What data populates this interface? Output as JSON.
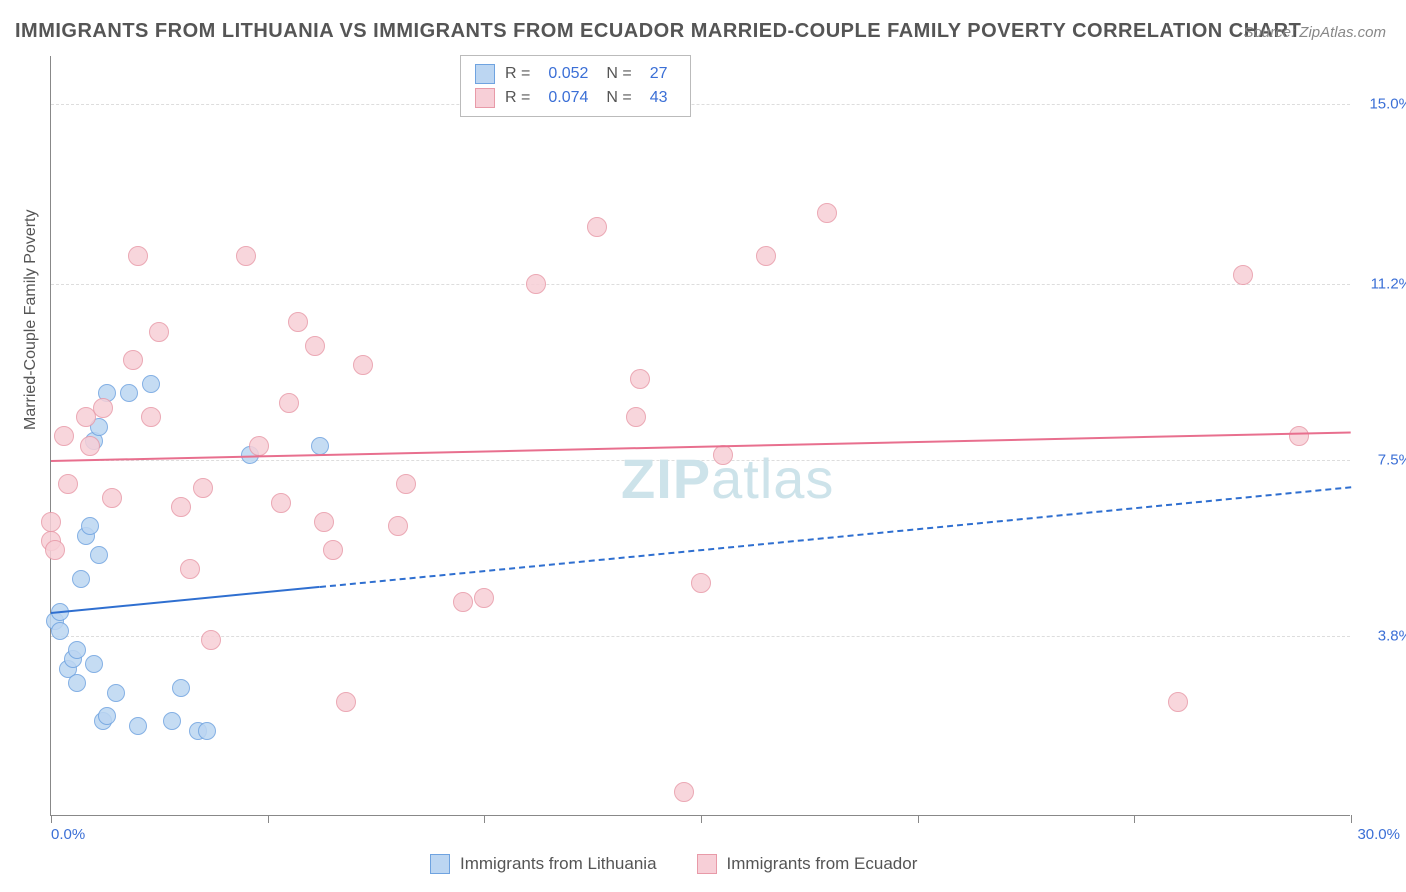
{
  "title": "IMMIGRANTS FROM LITHUANIA VS IMMIGRANTS FROM ECUADOR MARRIED-COUPLE FAMILY POVERTY CORRELATION CHART",
  "source": "Source: ZipAtlas.com",
  "watermark_bold": "ZIP",
  "watermark_thin": "atlas",
  "chart": {
    "type": "scatter",
    "background_color": "#ffffff",
    "grid_color": "#dddddd",
    "axis_color": "#888888",
    "ylabel": "Married-Couple Family Poverty",
    "ylabel_fontsize": 16,
    "xlim": [
      0,
      30
    ],
    "ylim": [
      0,
      16
    ],
    "xticks": [
      "0.0%",
      "30.0%"
    ],
    "xtick_marks": [
      0,
      5,
      10,
      15,
      20,
      25,
      30
    ],
    "yticks": [
      {
        "v": 3.8,
        "label": "3.8%"
      },
      {
        "v": 7.5,
        "label": "7.5%"
      },
      {
        "v": 11.2,
        "label": "11.2%"
      },
      {
        "v": 15.0,
        "label": "15.0%"
      }
    ],
    "series": [
      {
        "name": "Immigrants from Lithuania",
        "marker_color_fill": "#bcd6f2",
        "marker_color_stroke": "#6fa3e0",
        "marker_size": 18,
        "trend_color": "#2f6fd0",
        "trend_solid": {
          "x1": 0,
          "y1": 4.3,
          "x2": 6.2,
          "y2": 4.85
        },
        "trend_dash": {
          "x1": 6.2,
          "y1": 4.85,
          "x2": 30,
          "y2": 6.95
        },
        "R": "0.052",
        "N": "27",
        "points": [
          [
            0.1,
            4.1
          ],
          [
            0.2,
            3.9
          ],
          [
            0.2,
            4.3
          ],
          [
            0.4,
            3.1
          ],
          [
            0.5,
            3.3
          ],
          [
            0.6,
            2.8
          ],
          [
            0.6,
            3.5
          ],
          [
            0.7,
            5.0
          ],
          [
            0.8,
            5.9
          ],
          [
            0.9,
            6.1
          ],
          [
            1.0,
            3.2
          ],
          [
            1.0,
            7.9
          ],
          [
            1.1,
            5.5
          ],
          [
            1.1,
            8.2
          ],
          [
            1.2,
            2.0
          ],
          [
            1.3,
            2.1
          ],
          [
            1.3,
            8.9
          ],
          [
            1.5,
            2.6
          ],
          [
            1.8,
            8.9
          ],
          [
            2.0,
            1.9
          ],
          [
            2.3,
            9.1
          ],
          [
            2.8,
            2.0
          ],
          [
            3.0,
            2.7
          ],
          [
            3.4,
            1.8
          ],
          [
            3.6,
            1.8
          ],
          [
            4.6,
            7.6
          ],
          [
            6.2,
            7.8
          ]
        ]
      },
      {
        "name": "Immigrants from Ecuador",
        "marker_color_fill": "#f7cfd7",
        "marker_color_stroke": "#e89aa8",
        "marker_size": 20,
        "trend_color": "#e86f8e",
        "trend_solid": {
          "x1": 0,
          "y1": 7.5,
          "x2": 30,
          "y2": 8.1
        },
        "R": "0.074",
        "N": "43",
        "points": [
          [
            0.0,
            5.8
          ],
          [
            0.0,
            6.2
          ],
          [
            0.1,
            5.6
          ],
          [
            0.3,
            8.0
          ],
          [
            0.4,
            7.0
          ],
          [
            0.8,
            8.4
          ],
          [
            0.9,
            7.8
          ],
          [
            1.2,
            8.6
          ],
          [
            1.4,
            6.7
          ],
          [
            1.9,
            9.6
          ],
          [
            2.0,
            11.8
          ],
          [
            2.3,
            8.4
          ],
          [
            2.5,
            10.2
          ],
          [
            3.0,
            6.5
          ],
          [
            3.2,
            5.2
          ],
          [
            3.5,
            6.9
          ],
          [
            3.7,
            3.7
          ],
          [
            4.5,
            11.8
          ],
          [
            4.8,
            7.8
          ],
          [
            5.3,
            6.6
          ],
          [
            5.5,
            8.7
          ],
          [
            5.7,
            10.4
          ],
          [
            6.1,
            9.9
          ],
          [
            6.3,
            6.2
          ],
          [
            6.5,
            5.6
          ],
          [
            6.8,
            2.4
          ],
          [
            7.2,
            9.5
          ],
          [
            8.0,
            6.1
          ],
          [
            8.2,
            7.0
          ],
          [
            9.5,
            4.5
          ],
          [
            10.0,
            4.6
          ],
          [
            11.2,
            11.2
          ],
          [
            12.6,
            12.4
          ],
          [
            13.5,
            8.4
          ],
          [
            13.6,
            9.2
          ],
          [
            14.6,
            0.5
          ],
          [
            15.0,
            4.9
          ],
          [
            15.5,
            7.6
          ],
          [
            16.5,
            11.8
          ],
          [
            17.9,
            12.7
          ],
          [
            26.0,
            2.4
          ],
          [
            27.5,
            11.4
          ],
          [
            28.8,
            8.0
          ]
        ]
      }
    ]
  },
  "legend_top": {
    "R_label": "R =",
    "N_label": "N ="
  },
  "legend_bottom": [
    {
      "label": "Immigrants from Lithuania",
      "fill": "#bcd6f2",
      "stroke": "#6fa3e0"
    },
    {
      "label": "Immigrants from Ecuador",
      "fill": "#f7cfd7",
      "stroke": "#e89aa8"
    }
  ]
}
